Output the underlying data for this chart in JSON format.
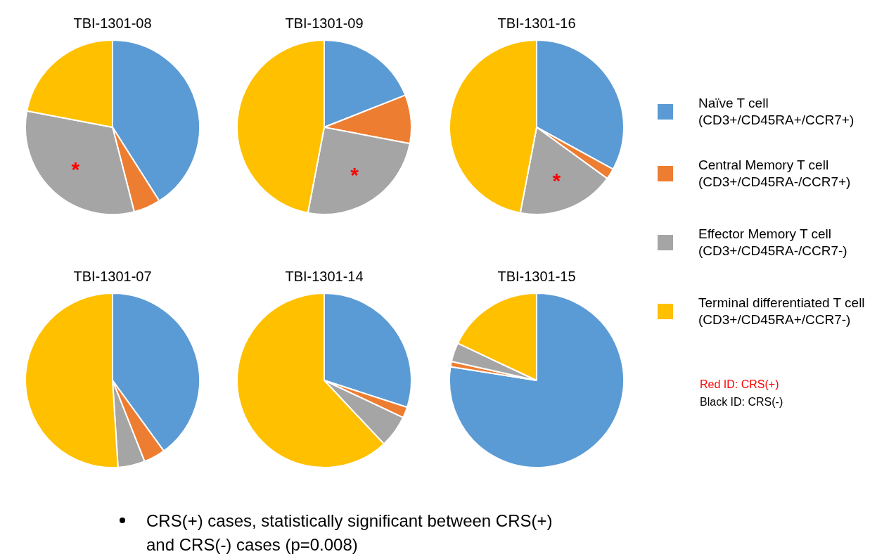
{
  "chart_data": [
    {
      "type": "pie",
      "title": "TBI-1301-08",
      "categories": [
        "Naïve T cell\n(CD3+/CD45RA+/CCR7+)",
        "Central Memory T cell\n(CD3+/CD45RA-/CCR7+)",
        "Effector Memory T cell\n(CD3+/CD45RA-/CCR7-)",
        "Terminal differentiated T cell\n(CD3+/CD45RA+/CCR7-)"
      ],
      "values": [
        41,
        5,
        32,
        22
      ],
      "colors": [
        "#5b9bd5",
        "#ed7d31",
        "#a5a5a5",
        "#ffc000"
      ],
      "annotations": [
        {
          "text": "*",
          "x": "Effector Memory T cell\n(CD3+/CD45RA-/CCR7-)"
        }
      ],
      "legend": "right"
    },
    {
      "type": "pie",
      "title": "TBI-1301-09",
      "categories": [
        null,
        null,
        null,
        null
      ],
      "values": [
        19,
        9,
        25,
        47
      ],
      "colors": [
        "#5b9bd5",
        "#ed7d31",
        "#a5a5a5",
        "#ffc000"
      ],
      "annotations": [
        "*"
      ]
    },
    {
      "type": "pie",
      "title": "TBI-1301-16",
      "categories": [
        null,
        null,
        null,
        null
      ],
      "values": [
        33,
        2,
        18,
        47
      ],
      "colors": [
        "#5b9bd5",
        "#ed7d31",
        "#a5a5a5",
        "#ffc000"
      ],
      "annotations": [
        "*"
      ]
    },
    {
      "type": "pie",
      "title": "TBI-1301-07",
      "categories": [
        null,
        null,
        null,
        null
      ],
      "values": [
        40,
        4,
        5,
        51
      ],
      "colors": [
        "#5b9bd5",
        "#ed7d31",
        "#a5a5a5",
        "#ffc000"
      ]
    },
    {
      "type": "pie",
      "title": "TBI-1301-14",
      "categories": [
        null,
        null,
        null,
        null
      ],
      "values": [
        30,
        2,
        6,
        62
      ],
      "colors": [
        "#5b9bd5",
        "#ed7d31",
        "#a5a5a5",
        "#ffc000"
      ]
    },
    {
      "type": "pie",
      "title": "TBI-1301-15",
      "categories": [
        null,
        null,
        null,
        null
      ],
      "values": [
        77.5,
        1,
        3.5,
        18
      ],
      "colors": [
        "#5b9bd5",
        "#ed7d31",
        "#a5a5a5",
        "#ffc000"
      ]
    },
    {
      "type": "other",
      "annotations": [
        "Red ID: CRS(+)",
        "Black ID: CRS(-)",
        "CRS(+) cases, statistically significant between CRS(+) and CRS(-) cases (p=0.008)"
      ]
    }
  ]
}
